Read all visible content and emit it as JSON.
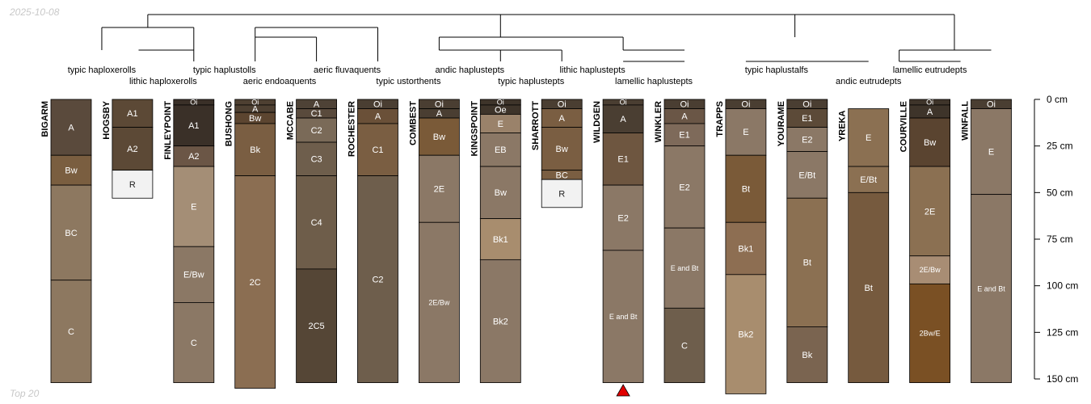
{
  "date": "2025-10-08",
  "footer": "Top 20",
  "depth_axis": {
    "unit": "cm",
    "max": 150,
    "ticks": [
      0,
      25,
      50,
      75,
      100,
      125,
      150
    ],
    "tick_labels": [
      "0 cm",
      "25 cm",
      "50 cm",
      "75 cm",
      "100 cm",
      "125 cm",
      "150 cm"
    ]
  },
  "taxa": [
    {
      "name": "typic haploxerolls",
      "col": 0.5,
      "row": 0
    },
    {
      "name": "lithic haploxerolls",
      "col": 1.5,
      "row": 1
    },
    {
      "name": "typic haplustolls",
      "col": 2.5,
      "row": 0
    },
    {
      "name": "aeric endoaquents",
      "col": 3.4,
      "row": 1
    },
    {
      "name": "aeric fluvaquents",
      "col": 4.5,
      "row": 0
    },
    {
      "name": "typic ustorthents",
      "col": 5.5,
      "row": 1
    },
    {
      "name": "andic haplustepts",
      "col": 6.5,
      "row": 0
    },
    {
      "name": "typic haplustepts",
      "col": 7.5,
      "row": 1
    },
    {
      "name": "lithic haplustepts",
      "col": 8.5,
      "row": 0
    },
    {
      "name": "lamellic haplustepts",
      "col": 9.5,
      "row": 1
    },
    {
      "name": "typic haplustalfs",
      "col": 11.5,
      "row": 0
    },
    {
      "name": "lamellic eutrudepts",
      "col": 14.0,
      "row": 0
    },
    {
      "name": "andic eutrudepts",
      "col": 13.0,
      "row": 1
    }
  ],
  "profiles": [
    {
      "name": "BIGARM",
      "horizons": [
        {
          "name": "A",
          "top": 0,
          "bottom": 30,
          "color": "#5a4a3c"
        },
        {
          "name": "Bw",
          "top": 30,
          "bottom": 46,
          "color": "#7a5e40"
        },
        {
          "name": "BC",
          "top": 46,
          "bottom": 97,
          "color": "#8d7860"
        },
        {
          "name": "C",
          "top": 97,
          "bottom": 152,
          "color": "#8d7860"
        }
      ]
    },
    {
      "name": "HOGSBY",
      "horizons": [
        {
          "name": "A1",
          "top": 0,
          "bottom": 15,
          "color": "#5c4936"
        },
        {
          "name": "A2",
          "top": 15,
          "bottom": 38,
          "color": "#5c4936"
        },
        {
          "name": "R",
          "top": 38,
          "bottom": 53,
          "color": "#f2f2f2"
        }
      ]
    },
    {
      "name": "FINLEYPOINT",
      "horizons": [
        {
          "name": "Oi",
          "top": 0,
          "bottom": 3,
          "color": "#3a3028"
        },
        {
          "name": "A1",
          "top": 3,
          "bottom": 25,
          "color": "#3a3028"
        },
        {
          "name": "A2",
          "top": 25,
          "bottom": 36,
          "color": "#6b5646"
        },
        {
          "name": "E",
          "top": 36,
          "bottom": 79,
          "color": "#a48e76"
        },
        {
          "name": "E/Bw",
          "top": 79,
          "bottom": 109,
          "color": "#8b7865"
        },
        {
          "name": "C",
          "top": 109,
          "bottom": 152,
          "color": "#8b7865"
        }
      ]
    },
    {
      "name": "BUSHONG",
      "horizons": [
        {
          "name": "Oi",
          "top": 0,
          "bottom": 3,
          "color": "#4e4032"
        },
        {
          "name": "A",
          "top": 3,
          "bottom": 7,
          "color": "#4e4032"
        },
        {
          "name": "Bw",
          "top": 7,
          "bottom": 13,
          "color": "#5c4530"
        },
        {
          "name": "Bk",
          "top": 13,
          "bottom": 41,
          "color": "#7a5e42"
        },
        {
          "name": "2C",
          "top": 41,
          "bottom": 155,
          "color": "#8b6e52"
        }
      ]
    },
    {
      "name": "MCCABE",
      "horizons": [
        {
          "name": "A",
          "top": 0,
          "bottom": 5,
          "color": "#4e4236"
        },
        {
          "name": "C1",
          "top": 5,
          "bottom": 10,
          "color": "#594a3c"
        },
        {
          "name": "C2",
          "top": 10,
          "bottom": 23,
          "color": "#7a6a58"
        },
        {
          "name": "C3",
          "top": 23,
          "bottom": 41,
          "color": "#6e5e4c"
        },
        {
          "name": "C4",
          "top": 41,
          "bottom": 91,
          "color": "#6e5d4a"
        },
        {
          "name": "2C5",
          "top": 91,
          "bottom": 152,
          "color": "#554636"
        }
      ]
    },
    {
      "name": "ROCHESTER",
      "horizons": [
        {
          "name": "Oi",
          "top": 0,
          "bottom": 5,
          "color": "#4a3e32"
        },
        {
          "name": "A",
          "top": 5,
          "bottom": 13,
          "color": "#6a5038"
        },
        {
          "name": "C1",
          "top": 13,
          "bottom": 41,
          "color": "#7a5e42"
        },
        {
          "name": "C2",
          "top": 41,
          "bottom": 152,
          "color": "#6e5e4c"
        }
      ]
    },
    {
      "name": "COMBEST",
      "horizons": [
        {
          "name": "Oi",
          "top": 0,
          "bottom": 5,
          "color": "#4a3e32"
        },
        {
          "name": "A",
          "top": 5,
          "bottom": 10,
          "color": "#4a3e32"
        },
        {
          "name": "Bw",
          "top": 10,
          "bottom": 30,
          "color": "#7a5a38"
        },
        {
          "name": "2E",
          "top": 30,
          "bottom": 66,
          "color": "#8b7866"
        },
        {
          "name": "2E/Bw",
          "top": 66,
          "bottom": 152,
          "color": "#8b7866"
        }
      ]
    },
    {
      "name": "KINGSPOINT",
      "horizons": [
        {
          "name": "Oi",
          "top": 0,
          "bottom": 3,
          "color": "#3e342a"
        },
        {
          "name": "Oe",
          "top": 3,
          "bottom": 8,
          "color": "#3e342a"
        },
        {
          "name": "E",
          "top": 8,
          "bottom": 18,
          "color": "#9a826a"
        },
        {
          "name": "EB",
          "top": 18,
          "bottom": 36,
          "color": "#8b7866"
        },
        {
          "name": "Bw",
          "top": 36,
          "bottom": 64,
          "color": "#8b7866"
        },
        {
          "name": "Bk1",
          "top": 64,
          "bottom": 86,
          "color": "#a88d6e"
        },
        {
          "name": "Bk2",
          "top": 86,
          "bottom": 152,
          "color": "#8b7866"
        }
      ]
    },
    {
      "name": "SHARROTT",
      "horizons": [
        {
          "name": "Oi",
          "top": 0,
          "bottom": 5,
          "color": "#4a3e32"
        },
        {
          "name": "A",
          "top": 5,
          "bottom": 15,
          "color": "#7a5e42"
        },
        {
          "name": "Bw",
          "top": 15,
          "bottom": 38,
          "color": "#7a5e42"
        },
        {
          "name": "BC",
          "top": 38,
          "bottom": 43,
          "color": "#7a5e42"
        },
        {
          "name": "R",
          "top": 43,
          "bottom": 58,
          "color": "#f2f2f2"
        }
      ]
    },
    {
      "name": "WILDGEN",
      "horizons": [
        {
          "name": "Oi",
          "top": 0,
          "bottom": 3,
          "color": "#4a3e32"
        },
        {
          "name": "A",
          "top": 3,
          "bottom": 18,
          "color": "#4a3e32"
        },
        {
          "name": "E1",
          "top": 18,
          "bottom": 46,
          "color": "#6e5640"
        },
        {
          "name": "E2",
          "top": 46,
          "bottom": 81,
          "color": "#8b7866"
        },
        {
          "name": "E and Bt",
          "top": 81,
          "bottom": 152,
          "color": "#8b7866"
        }
      ]
    },
    {
      "name": "WINKLER",
      "horizons": [
        {
          "name": "Oi",
          "top": 0,
          "bottom": 5,
          "color": "#4a3e32"
        },
        {
          "name": "A",
          "top": 5,
          "bottom": 13,
          "color": "#6a5646"
        },
        {
          "name": "E1",
          "top": 13,
          "bottom": 25,
          "color": "#7e6a5a"
        },
        {
          "name": "E2",
          "top": 25,
          "bottom": 69,
          "color": "#8b7866"
        },
        {
          "name": "E and Bt",
          "top": 69,
          "bottom": 112,
          "color": "#8b7866"
        },
        {
          "name": "C",
          "top": 112,
          "bottom": 152,
          "color": "#6e5e4c"
        }
      ]
    },
    {
      "name": "TRAPPS",
      "horizons": [
        {
          "name": "Oi",
          "top": 0,
          "bottom": 5,
          "color": "#4a3e32"
        },
        {
          "name": "E",
          "top": 5,
          "bottom": 30,
          "color": "#8b7866"
        },
        {
          "name": "Bt",
          "top": 30,
          "bottom": 66,
          "color": "#7a5a38"
        },
        {
          "name": "Bk1",
          "top": 66,
          "bottom": 94,
          "color": "#8d6e52"
        },
        {
          "name": "Bk2",
          "top": 94,
          "bottom": 158,
          "color": "#a88d6e"
        }
      ]
    },
    {
      "name": "YOURAME",
      "horizons": [
        {
          "name": "Oi",
          "top": 0,
          "bottom": 5,
          "color": "#4a3e32"
        },
        {
          "name": "E1",
          "top": 5,
          "bottom": 15,
          "color": "#5c4a38"
        },
        {
          "name": "E2",
          "top": 15,
          "bottom": 28,
          "color": "#8b7866"
        },
        {
          "name": "E/Bt",
          "top": 28,
          "bottom": 53,
          "color": "#8b7866"
        },
        {
          "name": "Bt",
          "top": 53,
          "bottom": 122,
          "color": "#8b7052"
        },
        {
          "name": "Bk",
          "top": 122,
          "bottom": 152,
          "color": "#7a6450"
        }
      ]
    },
    {
      "name": "YREKA",
      "horizons": [
        {
          "name": "E",
          "top": 5,
          "bottom": 36,
          "color": "#8b7052"
        },
        {
          "name": "E/Bt",
          "top": 36,
          "bottom": 50,
          "color": "#8b7052"
        },
        {
          "name": "Bt",
          "top": 50,
          "bottom": 152,
          "color": "#765a3e"
        }
      ]
    },
    {
      "name": "COURVILLE",
      "horizons": [
        {
          "name": "Oi",
          "top": 0,
          "bottom": 3,
          "color": "#3e342a"
        },
        {
          "name": "A",
          "top": 3,
          "bottom": 10,
          "color": "#3e342a"
        },
        {
          "name": "Bw",
          "top": 10,
          "bottom": 36,
          "color": "#5a4430"
        },
        {
          "name": "2E",
          "top": 36,
          "bottom": 84,
          "color": "#8b7052"
        },
        {
          "name": "2E/Bw",
          "top": 84,
          "bottom": 99,
          "color": "#a88d74"
        },
        {
          "name": "2Bw/E",
          "top": 99,
          "bottom": 152,
          "color": "#7a5024"
        }
      ]
    },
    {
      "name": "WINFALL",
      "horizons": [
        {
          "name": "Oi",
          "top": 0,
          "bottom": 5,
          "color": "#4a3e32"
        },
        {
          "name": "E",
          "top": 5,
          "bottom": 51,
          "color": "#8b7866"
        },
        {
          "name": "E and Bt",
          "top": 51,
          "bottom": 152,
          "color": "#8b7866"
        }
      ]
    }
  ],
  "marker": {
    "profile": "WILDGEN",
    "color": "#e10000"
  }
}
